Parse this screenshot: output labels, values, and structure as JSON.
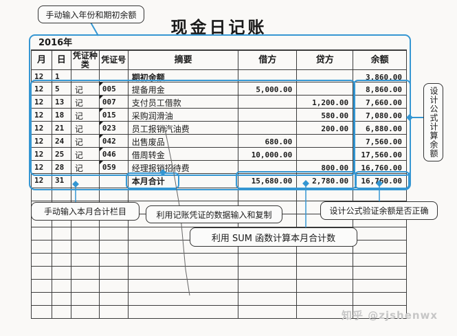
{
  "title": "现金日记账",
  "year_label": "2016年",
  "watermark": "知乎 @zjshenwx",
  "colors": {
    "accent_blue": "#3496d2",
    "grid_line": "#3a3a3a",
    "watermark_gray": "#c6c6c6"
  },
  "callouts": {
    "top": "手动输入年份和期初余额",
    "balance_formula": "设计公式计算余额",
    "manual_total": "手动输入本月合计栏目",
    "voucher_input": "利用记账凭证的数据输入和复制",
    "verify_balance": "设计公式验证余额是否正确",
    "sum_function": "利用 SUM 函数计算本月合计数"
  },
  "table": {
    "headers": [
      "月",
      "日",
      "凭证种类",
      "凭证号",
      "摘要",
      "借方",
      "贷方",
      "余额"
    ],
    "opening": {
      "month": "12",
      "day": "1",
      "type": "",
      "no": "",
      "summary": "期初余额",
      "debit": "",
      "credit": "",
      "balance": "3,860.00"
    },
    "rows": [
      {
        "month": "12",
        "day": "5",
        "type": "记",
        "no": "005",
        "summary": "提备用金",
        "debit": "5,000.00",
        "credit": "",
        "balance": "8,860.00"
      },
      {
        "month": "12",
        "day": "13",
        "type": "记",
        "no": "007",
        "summary": "支付员工借款",
        "debit": "",
        "credit": "1,200.00",
        "balance": "7,660.00"
      },
      {
        "month": "12",
        "day": "18",
        "type": "记",
        "no": "015",
        "summary": "采购润滑油",
        "debit": "",
        "credit": "580.00",
        "balance": "7,080.00"
      },
      {
        "month": "12",
        "day": "21",
        "type": "记",
        "no": "023",
        "summary": "员工报销汽油费",
        "debit": "",
        "credit": "200.00",
        "balance": "6,880.00"
      },
      {
        "month": "12",
        "day": "24",
        "type": "记",
        "no": "042",
        "summary": "出售废品",
        "debit": "680.00",
        "credit": "",
        "balance": "7,560.00"
      },
      {
        "month": "12",
        "day": "25",
        "type": "记",
        "no": "046",
        "summary": "借周转金",
        "debit": "10,000.00",
        "credit": "",
        "balance": "17,560.00"
      },
      {
        "month": "12",
        "day": "28",
        "type": "记",
        "no": "059",
        "summary": "经理报销招待费",
        "debit": "",
        "credit": "800.00",
        "balance": "16,760.00"
      }
    ],
    "total": {
      "month": "12",
      "day": "31",
      "type": "",
      "no": "",
      "summary": "本月合计",
      "debit": "15,680.00",
      "credit": "2,780.00",
      "balance": "16,760.00"
    },
    "empty_row_count": 10
  }
}
